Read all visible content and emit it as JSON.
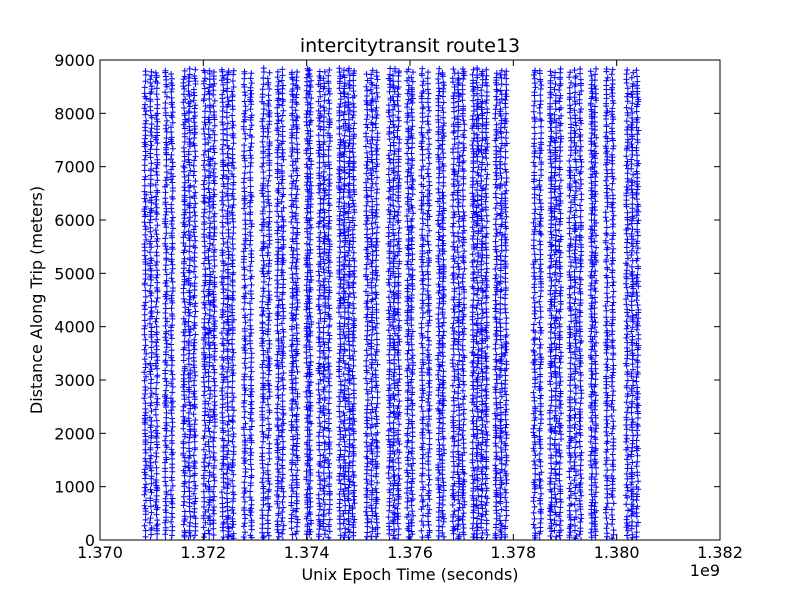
{
  "chart_data": {
    "type": "scatter",
    "title": "intercitytransit route13",
    "xlabel": "Unix Epoch Time (seconds)",
    "ylabel": "Distance Along Trip (meters)",
    "x_offset_label": "1e9",
    "xlim": [
      1.37,
      1.382
    ],
    "ylim": [
      0,
      9000
    ],
    "x_ticks": [
      "1.370",
      "1.372",
      "1.374",
      "1.376",
      "1.378",
      "1.380",
      "1.382"
    ],
    "y_ticks": [
      "0",
      "1000",
      "2000",
      "3000",
      "4000",
      "5000",
      "6000",
      "7000",
      "8000",
      "9000"
    ],
    "grid": false,
    "marker": "plus",
    "series": [
      {
        "color": "#0000ff",
        "note_points": "dense plus markers spanning distance 0 to ~8850 m, grouped in vertical bands",
        "bands_x": [
          [
            1.37082,
            1.37115
          ],
          [
            1.37122,
            1.37145
          ],
          [
            1.37158,
            1.37188
          ],
          [
            1.37198,
            1.37225
          ],
          [
            1.37233,
            1.37262
          ],
          [
            1.37274,
            1.37298
          ],
          [
            1.3731,
            1.37332
          ],
          [
            1.3734,
            1.37358
          ],
          [
            1.37368,
            1.37385
          ],
          [
            1.37398,
            1.3741
          ],
          [
            1.3742,
            1.37448
          ],
          [
            1.3746,
            1.37495
          ],
          [
            1.37512,
            1.3754
          ],
          [
            1.37556,
            1.37582
          ],
          [
            1.37592,
            1.37608
          ],
          [
            1.37618,
            1.37642
          ],
          [
            1.37652,
            1.37668
          ],
          [
            1.3768,
            1.37708
          ],
          [
            1.37718,
            1.37752
          ],
          [
            1.37762,
            1.3779
          ],
          [
            1.37835,
            1.37858
          ],
          [
            1.37868,
            1.37895
          ],
          [
            1.37905,
            1.37935
          ],
          [
            1.37948,
            1.37962
          ],
          [
            1.37975,
            1.37998
          ],
          [
            1.38015,
            1.38045
          ]
        ],
        "y_range": [
          0,
          8850
        ]
      }
    ]
  }
}
